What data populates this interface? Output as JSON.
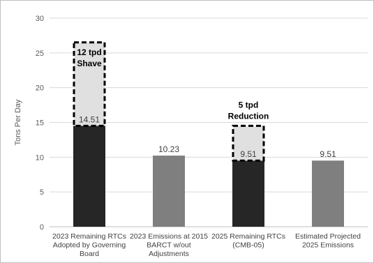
{
  "chart_data": {
    "type": "bar",
    "ylabel": "Tons Per Day",
    "ylim": [
      0,
      30
    ],
    "yticks": [
      0,
      5,
      10,
      15,
      20,
      25,
      30
    ],
    "grid": true,
    "categories": [
      [
        "2023 Remaining RTCs",
        "Adopted by Governing",
        "Board"
      ],
      [
        "2023 Emissions at 2015",
        "BARCT w/out",
        "Adjustments"
      ],
      [
        "2025 Remaining RTCs",
        "(CMB-05)"
      ],
      [
        "Estimated Projected",
        "2025 Emissions"
      ]
    ],
    "values": [
      14.51,
      10.23,
      9.51,
      9.51
    ],
    "value_labels": [
      "14.51",
      "10.23",
      "9.51",
      "9.51"
    ],
    "bar_colors": [
      "#262626",
      "#7f7f7f",
      "#262626",
      "#7f7f7f"
    ],
    "annotations": [
      {
        "category_index": 0,
        "y_from": 14.51,
        "y_to": 26.51,
        "lines": [
          "12 tpd",
          "Shave"
        ],
        "text_position": "inside"
      },
      {
        "category_index": 2,
        "y_from": 9.51,
        "y_to": 14.51,
        "lines": [
          "5 tpd",
          "Reduction"
        ],
        "text_position": "above"
      }
    ],
    "colors": {
      "grid": "#d9d9d9",
      "axis": "#bfbfbf",
      "shave_fill": "#e0e0e0",
      "shave_border": "#000000"
    }
  }
}
